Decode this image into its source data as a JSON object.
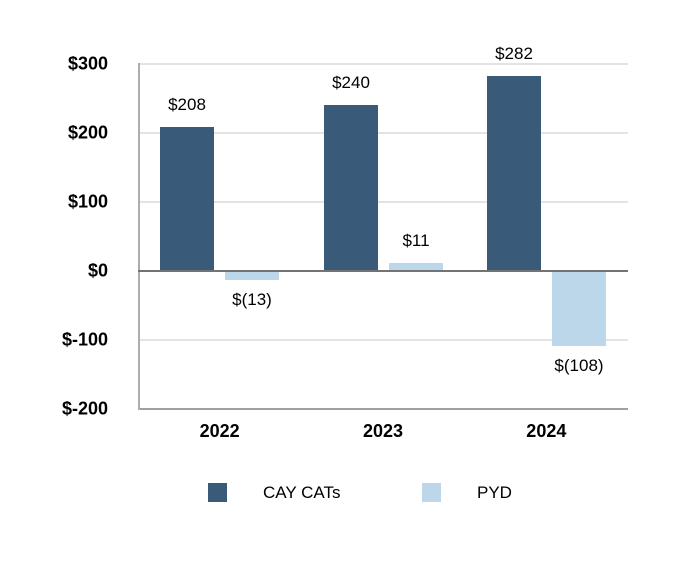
{
  "chart_data": {
    "type": "bar",
    "categories": [
      "2022",
      "2023",
      "2024"
    ],
    "series": [
      {
        "name": "CAY CATs",
        "color": "#3A5A7A",
        "values": [
          208,
          240,
          282
        ],
        "data_labels": [
          "$208",
          "$240",
          "$282"
        ]
      },
      {
        "name": "PYD",
        "color": "#BCD6EA",
        "values": [
          -13,
          11,
          -108
        ],
        "data_labels": [
          "$(13)",
          "$11",
          "$(108)"
        ]
      }
    ],
    "title": "",
    "xlabel": "",
    "ylabel": "",
    "ylim": [
      -200,
      300
    ],
    "yticks": [
      {
        "value": 300,
        "label": "$300"
      },
      {
        "value": 200,
        "label": "$200"
      },
      {
        "value": 100,
        "label": "$100"
      },
      {
        "value": 0,
        "label": "$0"
      },
      {
        "value": -100,
        "label": "$-100"
      },
      {
        "value": -200,
        "label": "$-200"
      }
    ],
    "grid": true,
    "legend_position": "bottom"
  },
  "colors": {
    "background": "#FFFFFF",
    "text": "#000000",
    "gridline": "#E3E3E3",
    "zero_axis": "#737373",
    "bottom_border": "#A0A0A0",
    "left_axis": "#ADADAD"
  }
}
